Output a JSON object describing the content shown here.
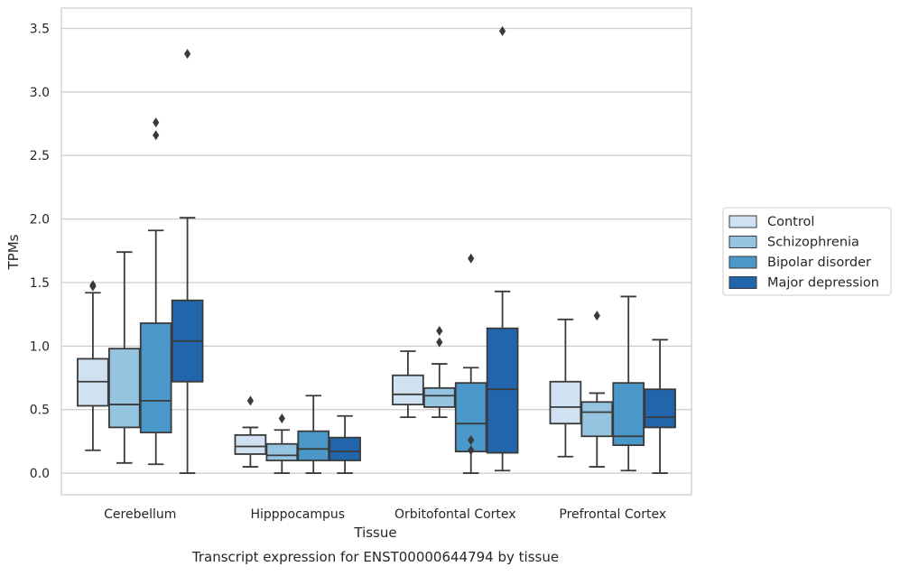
{
  "chart_data": {
    "type": "box",
    "caption": "Transcript expression for ENST00000644794 by tissue",
    "xlabel": "Tissue",
    "ylabel": "TPMs",
    "ylim": [
      -0.17,
      3.66
    ],
    "yticks": [
      0.0,
      0.5,
      1.0,
      1.5,
      2.0,
      2.5,
      3.0,
      3.5
    ],
    "ytick_labels": [
      "0.0",
      "0.5",
      "1.0",
      "1.5",
      "2.0",
      "2.5",
      "3.0",
      "3.5"
    ],
    "grid": "horizontal",
    "legend_position": "outside-right",
    "categories": [
      "Cerebellum",
      "Hipppocampus",
      "Orbitofontal Cortex",
      "Prefrontal Cortex"
    ],
    "series": [
      {
        "name": "Control",
        "color": "#d0e1f2",
        "boxes": [
          {
            "whislo": 0.18,
            "q1": 0.53,
            "med": 0.72,
            "q3": 0.9,
            "whishi": 1.42,
            "fliers": [
              1.47,
              1.48
            ]
          },
          {
            "whislo": 0.05,
            "q1": 0.15,
            "med": 0.21,
            "q3": 0.3,
            "whishi": 0.36,
            "fliers": [
              0.57
            ]
          },
          {
            "whislo": 0.44,
            "q1": 0.54,
            "med": 0.62,
            "q3": 0.77,
            "whishi": 0.96,
            "fliers": []
          },
          {
            "whislo": 0.13,
            "q1": 0.39,
            "med": 0.52,
            "q3": 0.72,
            "whishi": 1.21,
            "fliers": []
          }
        ]
      },
      {
        "name": "Schizophrenia",
        "color": "#94c4df",
        "boxes": [
          {
            "whislo": 0.08,
            "q1": 0.36,
            "med": 0.54,
            "q3": 0.98,
            "whishi": 1.74,
            "fliers": []
          },
          {
            "whislo": 0.0,
            "q1": 0.1,
            "med": 0.14,
            "q3": 0.23,
            "whishi": 0.34,
            "fliers": [
              0.43
            ]
          },
          {
            "whislo": 0.44,
            "q1": 0.52,
            "med": 0.61,
            "q3": 0.67,
            "whishi": 0.86,
            "fliers": [
              1.03,
              1.12
            ]
          },
          {
            "whislo": 0.05,
            "q1": 0.29,
            "med": 0.48,
            "q3": 0.56,
            "whishi": 0.63,
            "fliers": [
              1.24
            ]
          }
        ]
      },
      {
        "name": "Bipolar disorder",
        "color": "#4a98c9",
        "boxes": [
          {
            "whislo": 0.07,
            "q1": 0.32,
            "med": 0.57,
            "q3": 1.18,
            "whishi": 1.91,
            "fliers": [
              2.66,
              2.76
            ]
          },
          {
            "whislo": 0.0,
            "q1": 0.1,
            "med": 0.19,
            "q3": 0.33,
            "whishi": 0.61,
            "fliers": []
          },
          {
            "whislo": 0.0,
            "q1": 0.17,
            "med": 0.39,
            "q3": 0.71,
            "whishi": 0.83,
            "fliers": [
              0.18,
              0.26,
              1.69
            ]
          },
          {
            "whislo": 0.02,
            "q1": 0.22,
            "med": 0.29,
            "q3": 0.71,
            "whishi": 1.39,
            "fliers": []
          }
        ]
      },
      {
        "name": "Major depression",
        "color": "#2166ac",
        "boxes": [
          {
            "whislo": 0.0,
            "q1": 0.72,
            "med": 1.04,
            "q3": 1.36,
            "whishi": 2.01,
            "fliers": [
              3.3
            ]
          },
          {
            "whislo": 0.0,
            "q1": 0.1,
            "med": 0.17,
            "q3": 0.28,
            "whishi": 0.45,
            "fliers": []
          },
          {
            "whislo": 0.02,
            "q1": 0.16,
            "med": 0.66,
            "q3": 1.14,
            "whishi": 1.43,
            "fliers": [
              3.48
            ]
          },
          {
            "whislo": 0.0,
            "q1": 0.36,
            "med": 0.44,
            "q3": 0.66,
            "whishi": 1.05,
            "fliers": []
          }
        ]
      }
    ]
  }
}
